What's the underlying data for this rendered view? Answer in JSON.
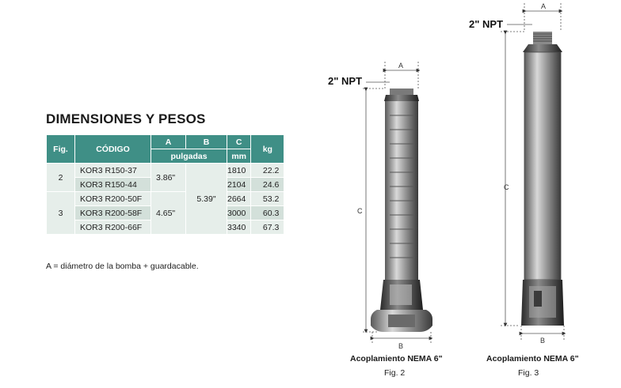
{
  "section_title": "DIMENSIONES Y PESOS",
  "table": {
    "headers": {
      "fig": "Fig.",
      "codigo": "CÓDIGO",
      "a": "A",
      "b": "B",
      "c": "C",
      "kg": "kg",
      "pulgadas": "pulgadas",
      "mm": "mm"
    },
    "groups": [
      {
        "fig": "2",
        "a": "3.86\"",
        "rows": [
          {
            "codigo": "KOR3 R150-37",
            "c": "1810",
            "kg": "22.2"
          },
          {
            "codigo": "KOR3 R150-44",
            "c": "2104",
            "kg": "24.6"
          }
        ]
      },
      {
        "fig": "3",
        "a": "4.65\"",
        "rows": [
          {
            "codigo": "KOR3 R200-50F",
            "c": "2664",
            "kg": "53.2"
          },
          {
            "codigo": "KOR3 R200-58F",
            "c": "3000",
            "kg": "60.3"
          },
          {
            "codigo": "KOR3 R200-66F",
            "c": "3340",
            "kg": "67.3"
          }
        ]
      }
    ],
    "b_shared": "5.39\""
  },
  "note": "A = diámetro de la bomba + guardacable.",
  "figures": {
    "fig2": {
      "npt_label": "2\" NPT",
      "dim_a": "A",
      "dim_b": "B",
      "dim_c": "C",
      "caption": "Acoplamiento NEMA 6\"",
      "figno": "Fig. 2"
    },
    "fig3": {
      "npt_label": "2\" NPT",
      "dim_a": "A",
      "dim_b": "B",
      "dim_c": "C",
      "caption": "Acoplamiento NEMA 6\"",
      "figno": "Fig. 3"
    }
  },
  "colors": {
    "header": "#3f8f86",
    "row_light": "#e6eeea",
    "row_mid": "#d3e0da"
  }
}
